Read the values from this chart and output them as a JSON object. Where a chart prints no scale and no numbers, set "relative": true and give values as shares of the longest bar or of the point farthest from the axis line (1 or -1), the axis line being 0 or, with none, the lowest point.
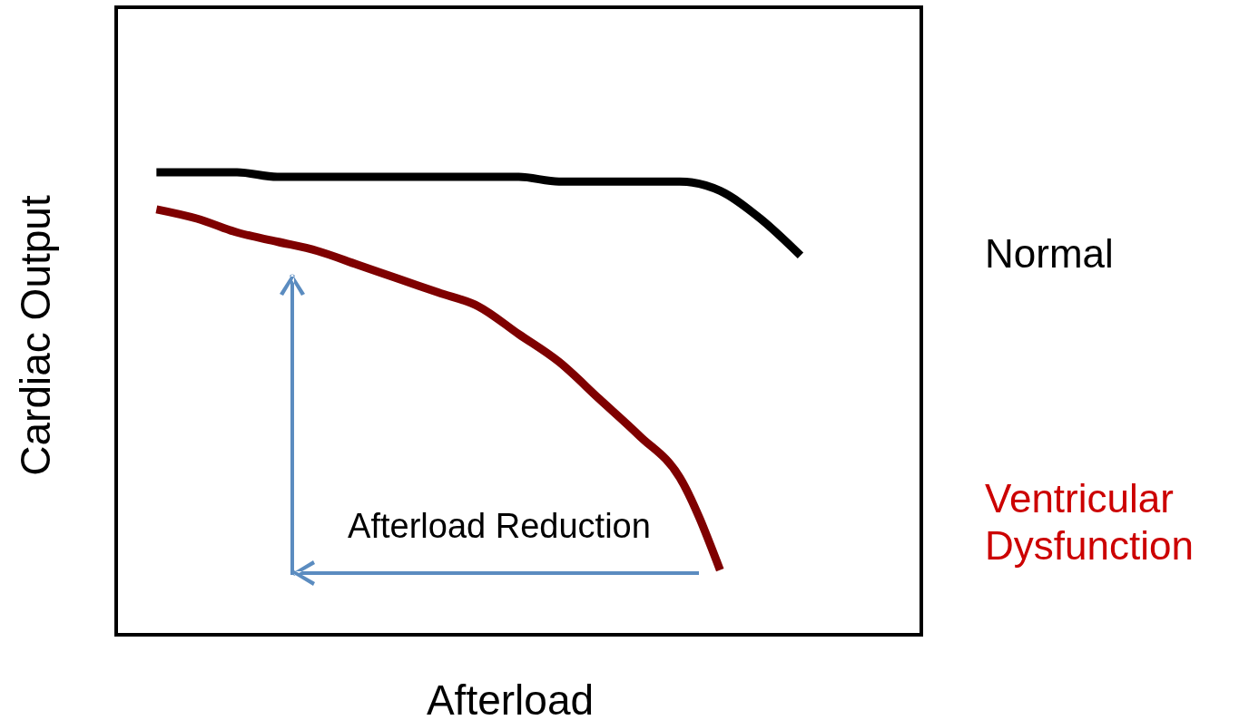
{
  "chart_data": {
    "type": "line",
    "relative": true,
    "xlabel": "Afterload",
    "ylabel": "Cardiac Output",
    "categories": [
      null,
      null,
      null,
      null,
      null,
      null,
      null,
      null,
      null,
      null,
      null,
      null,
      null,
      null,
      null,
      null,
      null,
      null,
      null,
      null,
      null
    ],
    "series": [
      {
        "name": "Normal",
        "color": "#000000",
        "values": [
          null,
          1.0,
          1.0,
          1.0,
          0.99,
          0.99,
          0.99,
          0.99,
          0.99,
          0.99,
          0.99,
          0.98,
          0.98,
          0.98,
          0.98,
          0.96,
          0.9,
          0.82,
          null,
          null,
          null
        ]
      },
      {
        "name": "Ventricular Dysfunction",
        "color": "#7f0000",
        "values": [
          null,
          0.92,
          0.9,
          0.87,
          0.85,
          0.83,
          0.8,
          0.77,
          0.74,
          0.71,
          0.65,
          0.59,
          0.51,
          0.43,
          0.34,
          0.14,
          null,
          null,
          null,
          null,
          null
        ]
      }
    ],
    "annotations": [
      "Afterload Reduction"
    ]
  }
}
